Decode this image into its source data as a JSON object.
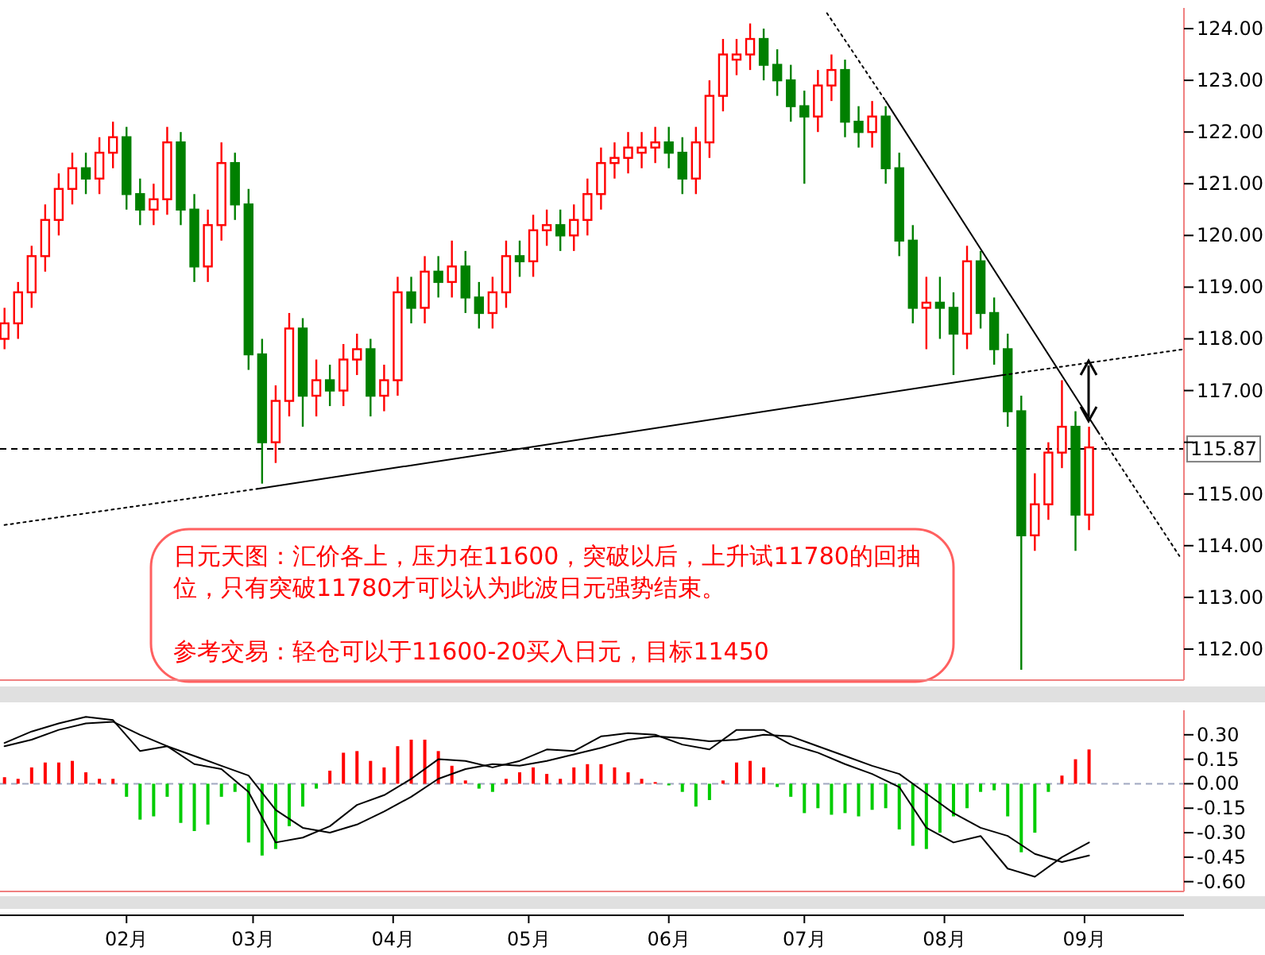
{
  "chart_data": [
    {
      "type": "candlestick",
      "tick_labels": "y",
      "xlim": [
        "--01-04",
        "--09-23"
      ],
      "ylim": [
        111.4,
        124.4
      ],
      "yticks": [
        {
          "value": 112,
          "label": "112.00"
        },
        {
          "value": 113,
          "label": "113.00"
        },
        {
          "value": 114,
          "label": "114.00"
        },
        {
          "value": 115,
          "label": "115.00"
        },
        {
          "value": 116,
          "label": null
        },
        {
          "value": 117,
          "label": "117.00"
        },
        {
          "value": 118,
          "label": "118.00"
        },
        {
          "value": 119,
          "label": "119.00"
        },
        {
          "value": 120,
          "label": "120.00"
        },
        {
          "value": 121,
          "label": "121.00"
        },
        {
          "value": 122,
          "label": "122.00"
        },
        {
          "value": 123,
          "label": "123.00"
        },
        {
          "value": 124,
          "label": "124.00"
        }
      ],
      "x": [
        "--01-05",
        "--01-08",
        "--01-11",
        "--01-14",
        "--01-17",
        "--01-20",
        "--01-23",
        "--01-26",
        "--01-29",
        "--02-01",
        "--02-04",
        "--02-07",
        "--02-10",
        "--02-13",
        "--02-16",
        "--02-19",
        "--02-22",
        "--02-25",
        "--02-28",
        "--03-03",
        "--03-06",
        "--03-09",
        "--03-12",
        "--03-15",
        "--03-18",
        "--03-21",
        "--03-24",
        "--03-27",
        "--03-30",
        "--04-02",
        "--04-05",
        "--04-08",
        "--04-11",
        "--04-14",
        "--04-17",
        "--04-20",
        "--04-23",
        "--04-26",
        "--04-29",
        "--05-02",
        "--05-05",
        "--05-08",
        "--05-11",
        "--05-14",
        "--05-17",
        "--05-20",
        "--05-23",
        "--05-26",
        "--05-29",
        "--06-01",
        "--06-04",
        "--06-07",
        "--06-10",
        "--06-13",
        "--06-16",
        "--06-19",
        "--06-22",
        "--06-25",
        "--06-28",
        "--07-01",
        "--07-04",
        "--07-07",
        "--07-10",
        "--07-13",
        "--07-16",
        "--07-19",
        "--07-22",
        "--07-25",
        "--07-28",
        "--07-31",
        "--08-03",
        "--08-06",
        "--08-09",
        "--08-12",
        "--08-15",
        "--08-18",
        "--08-21",
        "--08-24",
        "--08-27",
        "--08-30",
        "--09-02"
      ],
      "ohlc": [
        [
          118.0,
          118.6,
          117.8,
          118.3
        ],
        [
          118.3,
          119.1,
          118.0,
          118.9
        ],
        [
          118.9,
          119.8,
          118.6,
          119.6
        ],
        [
          119.6,
          120.6,
          119.3,
          120.3
        ],
        [
          120.3,
          121.2,
          120.0,
          120.9
        ],
        [
          120.9,
          121.6,
          120.6,
          121.3
        ],
        [
          121.3,
          121.6,
          120.8,
          121.1
        ],
        [
          121.1,
          121.9,
          120.8,
          121.6
        ],
        [
          121.6,
          122.2,
          121.3,
          121.9
        ],
        [
          121.9,
          122.1,
          120.5,
          120.8
        ],
        [
          120.8,
          121.1,
          120.2,
          120.5
        ],
        [
          120.5,
          121.0,
          120.2,
          120.7
        ],
        [
          120.7,
          122.1,
          120.4,
          121.8
        ],
        [
          121.8,
          122.0,
          120.2,
          120.5
        ],
        [
          120.5,
          120.8,
          119.1,
          119.4
        ],
        [
          119.4,
          120.5,
          119.1,
          120.2
        ],
        [
          120.2,
          121.8,
          119.9,
          121.4
        ],
        [
          121.4,
          121.6,
          120.3,
          120.6
        ],
        [
          120.6,
          120.9,
          117.4,
          117.7
        ],
        [
          117.7,
          118.0,
          115.2,
          116.0
        ],
        [
          116.0,
          117.1,
          115.6,
          116.8
        ],
        [
          116.8,
          118.5,
          116.5,
          118.2
        ],
        [
          118.2,
          118.4,
          116.3,
          116.9
        ],
        [
          116.9,
          117.6,
          116.5,
          117.2
        ],
        [
          117.2,
          117.5,
          116.7,
          117.0
        ],
        [
          117.0,
          117.9,
          116.7,
          117.6
        ],
        [
          117.6,
          118.1,
          117.3,
          117.8
        ],
        [
          117.8,
          118.0,
          116.5,
          116.9
        ],
        [
          116.9,
          117.5,
          116.6,
          117.2
        ],
        [
          117.2,
          119.2,
          116.9,
          118.9
        ],
        [
          118.9,
          119.2,
          118.3,
          118.6
        ],
        [
          118.6,
          119.6,
          118.3,
          119.3
        ],
        [
          119.3,
          119.6,
          118.8,
          119.1
        ],
        [
          119.1,
          119.9,
          118.8,
          119.4
        ],
        [
          119.4,
          119.7,
          118.5,
          118.8
        ],
        [
          118.8,
          119.1,
          118.2,
          118.5
        ],
        [
          118.5,
          119.2,
          118.2,
          118.9
        ],
        [
          118.9,
          119.9,
          118.6,
          119.6
        ],
        [
          119.6,
          119.9,
          119.2,
          119.5
        ],
        [
          119.5,
          120.4,
          119.2,
          120.1
        ],
        [
          120.1,
          120.5,
          119.8,
          120.2
        ],
        [
          120.2,
          120.5,
          119.7,
          120.0
        ],
        [
          120.0,
          120.6,
          119.7,
          120.3
        ],
        [
          120.3,
          121.1,
          120.0,
          120.8
        ],
        [
          120.8,
          121.7,
          120.5,
          121.4
        ],
        [
          121.4,
          121.8,
          121.1,
          121.5
        ],
        [
          121.5,
          122.0,
          121.2,
          121.7
        ],
        [
          121.6,
          122.0,
          121.3,
          121.7
        ],
        [
          121.7,
          122.1,
          121.4,
          121.8
        ],
        [
          121.8,
          122.1,
          121.3,
          121.6
        ],
        [
          121.6,
          121.9,
          120.8,
          121.1
        ],
        [
          121.1,
          122.1,
          120.8,
          121.8
        ],
        [
          121.8,
          123.0,
          121.5,
          122.7
        ],
        [
          122.7,
          123.8,
          122.4,
          123.5
        ],
        [
          123.4,
          123.8,
          123.1,
          123.5
        ],
        [
          123.5,
          124.1,
          123.2,
          123.8
        ],
        [
          123.8,
          124.0,
          123.0,
          123.3
        ],
        [
          123.3,
          123.6,
          122.7,
          123.0
        ],
        [
          123.0,
          123.3,
          122.2,
          122.5
        ],
        [
          122.5,
          122.8,
          121.0,
          122.3
        ],
        [
          122.3,
          123.2,
          122.0,
          122.9
        ],
        [
          122.9,
          123.5,
          122.6,
          123.2
        ],
        [
          123.2,
          123.4,
          121.9,
          122.2
        ],
        [
          122.2,
          122.5,
          121.7,
          122.0
        ],
        [
          122.0,
          122.6,
          121.7,
          122.3
        ],
        [
          122.3,
          122.5,
          121.0,
          121.3
        ],
        [
          121.3,
          121.6,
          119.6,
          119.9
        ],
        [
          119.9,
          120.2,
          118.3,
          118.6
        ],
        [
          118.6,
          119.2,
          117.8,
          118.7
        ],
        [
          118.7,
          119.2,
          118.0,
          118.6
        ],
        [
          118.6,
          118.9,
          117.3,
          118.1
        ],
        [
          118.1,
          119.8,
          117.8,
          119.5
        ],
        [
          119.5,
          119.7,
          118.2,
          118.5
        ],
        [
          118.5,
          118.8,
          117.5,
          117.8
        ],
        [
          117.8,
          118.1,
          116.3,
          116.6
        ],
        [
          116.6,
          116.9,
          111.6,
          114.2
        ],
        [
          114.2,
          115.4,
          113.9,
          114.8
        ],
        [
          114.8,
          116.0,
          114.5,
          115.8
        ],
        [
          115.8,
          117.2,
          115.5,
          116.3
        ],
        [
          116.3,
          116.6,
          113.9,
          114.6
        ],
        [
          114.6,
          116.3,
          114.3,
          115.9
        ]
      ],
      "colors": [
        "#ff0000",
        "#ff0000",
        "#ff0000",
        "#ff0000",
        "#ff0000",
        "#ff0000",
        "#008000",
        "#ff0000",
        "#ff0000",
        "#008000",
        "#008000",
        "#ff0000",
        "#ff0000",
        "#008000",
        "#008000",
        "#ff0000",
        "#ff0000",
        "#008000",
        "#008000",
        "#008000",
        "#ff0000",
        "#ff0000",
        "#008000",
        "#ff0000",
        "#008000",
        "#ff0000",
        "#ff0000",
        "#008000",
        "#ff0000",
        "#ff0000",
        "#008000",
        "#ff0000",
        "#008000",
        "#ff0000",
        "#008000",
        "#008000",
        "#ff0000",
        "#ff0000",
        "#008000",
        "#ff0000",
        "#ff0000",
        "#008000",
        "#ff0000",
        "#ff0000",
        "#ff0000",
        "#ff0000",
        "#ff0000",
        "#ff0000",
        "#ff0000",
        "#008000",
        "#008000",
        "#ff0000",
        "#ff0000",
        "#ff0000",
        "#ff0000",
        "#ff0000",
        "#008000",
        "#008000",
        "#008000",
        "#008000",
        "#ff0000",
        "#ff0000",
        "#008000",
        "#008000",
        "#ff0000",
        "#008000",
        "#008000",
        "#008000",
        "#ff0000",
        "#008000",
        "#008000",
        "#ff0000",
        "#008000",
        "#008000",
        "#008000",
        "#008000",
        "#ff0000",
        "#ff0000",
        "#ff0000",
        "#008000",
        "#ff0000"
      ],
      "series": [
        {
          "type": "line",
          "x": [
            "--01-05",
            "--03-02"
          ],
          "values": [
            114.4,
            115.1
          ],
          "color": "#000000",
          "line_style": "dotted"
        },
        {
          "type": "line",
          "x": [
            "--03-02",
            "--08-14"
          ],
          "values": [
            115.1,
            117.3
          ],
          "color": "#000000",
          "line_style": "solid"
        },
        {
          "type": "line",
          "x": [
            "--08-14",
            "--09-23"
          ],
          "values": [
            117.3,
            117.8
          ],
          "color": "#000000",
          "line_style": "dotted"
        },
        {
          "type": "line",
          "x": [
            "--07-06",
            "--07-19"
          ],
          "values": [
            124.3,
            122.6
          ],
          "color": "#000000",
          "line_style": "dotted"
        },
        {
          "type": "line",
          "x": [
            "--07-19",
            "--09-04"
          ],
          "values": [
            122.6,
            116.2
          ],
          "color": "#000000",
          "line_style": "solid"
        },
        {
          "type": "line",
          "x": [
            "--09-04",
            "--09-22"
          ],
          "values": [
            116.2,
            113.8
          ],
          "color": "#000000",
          "line_style": "dotted"
        }
      ],
      "ref_lines": [
        {
          "axis": "y",
          "value": 115.87,
          "label": "115.87",
          "color": "#000000",
          "line_style": "dashed"
        }
      ],
      "annotations": [
        "日元天图：汇价各上，压力在11600，突破以后，上升试11780的回抽位，只有突破11780才可以认为此波日元强势结束。",
        "参考交易：轻仓可以于11600-20买入日元，目标11450"
      ]
    },
    {
      "type": "bar",
      "xlim": [
        "--01-04",
        "--09-23"
      ],
      "ylim": [
        -0.66,
        0.45
      ],
      "yticks": [
        {
          "value": 0.3,
          "label": "0.30"
        },
        {
          "value": 0.15,
          "label": "0.15"
        },
        {
          "value": 0,
          "label": "0.00"
        },
        {
          "value": -0.15,
          "label": "-0.15"
        },
        {
          "value": -0.3,
          "label": "-0.30"
        },
        {
          "value": -0.45,
          "label": "-0.45"
        },
        {
          "value": -0.6,
          "label": "-0.60"
        }
      ],
      "xticks": [
        {
          "value": "--02-01",
          "label": "02月"
        },
        {
          "value": "--03-01",
          "label": "03月"
        },
        {
          "value": "--04-01",
          "label": "04月"
        },
        {
          "value": "--05-01",
          "label": "05月"
        },
        {
          "value": "--06-01",
          "label": "06月"
        },
        {
          "value": "--07-01",
          "label": "07月"
        },
        {
          "value": "--08-01",
          "label": "08月"
        },
        {
          "value": "--09-01",
          "label": "09月"
        }
      ],
      "x": [
        "--01-05",
        "--01-08",
        "--01-11",
        "--01-14",
        "--01-17",
        "--01-20",
        "--01-23",
        "--01-26",
        "--01-29",
        "--02-01",
        "--02-04",
        "--02-07",
        "--02-10",
        "--02-13",
        "--02-16",
        "--02-19",
        "--02-22",
        "--02-25",
        "--02-28",
        "--03-03",
        "--03-06",
        "--03-09",
        "--03-12",
        "--03-15",
        "--03-18",
        "--03-21",
        "--03-24",
        "--03-27",
        "--03-30",
        "--04-02",
        "--04-05",
        "--04-08",
        "--04-11",
        "--04-14",
        "--04-17",
        "--04-20",
        "--04-23",
        "--04-26",
        "--04-29",
        "--05-02",
        "--05-05",
        "--05-08",
        "--05-11",
        "--05-14",
        "--05-17",
        "--05-20",
        "--05-23",
        "--05-26",
        "--05-29",
        "--06-01",
        "--06-04",
        "--06-07",
        "--06-10",
        "--06-13",
        "--06-16",
        "--06-19",
        "--06-22",
        "--06-25",
        "--06-28",
        "--07-01",
        "--07-04",
        "--07-07",
        "--07-10",
        "--07-13",
        "--07-16",
        "--07-19",
        "--07-22",
        "--07-25",
        "--07-28",
        "--07-31",
        "--08-03",
        "--08-06",
        "--08-09",
        "--08-12",
        "--08-15",
        "--08-18",
        "--08-21",
        "--08-24",
        "--08-27",
        "--08-30",
        "--09-02"
      ],
      "series": [
        {
          "type": "bar",
          "values": [
            0.04,
            0.03,
            0.1,
            0.13,
            0.13,
            0.14,
            0.07,
            0.03,
            0.03,
            -0.08,
            -0.22,
            -0.2,
            -0.08,
            -0.24,
            -0.29,
            -0.25,
            -0.08,
            -0.05,
            -0.36,
            -0.44,
            -0.4,
            -0.26,
            -0.14,
            -0.03,
            0.08,
            0.19,
            0.2,
            0.14,
            0.1,
            0.23,
            0.27,
            0.27,
            0.2,
            0.11,
            0.02,
            -0.03,
            -0.05,
            0.03,
            0.07,
            0.1,
            0.06,
            0.03,
            0.1,
            0.12,
            0.12,
            0.1,
            0.07,
            0.03,
            0.01,
            -0.01,
            -0.05,
            -0.14,
            -0.1,
            0.02,
            0.13,
            0.14,
            0.1,
            -0.02,
            -0.08,
            -0.18,
            -0.15,
            -0.19,
            -0.18,
            -0.2,
            -0.16,
            -0.15,
            -0.28,
            -0.38,
            -0.4,
            -0.3,
            -0.2,
            -0.15,
            -0.05,
            -0.04,
            -0.2,
            -0.42,
            -0.3,
            -0.05,
            0.05,
            0.15,
            0.21
          ],
          "colors": [
            "#ff0000",
            "#ff0000",
            "#ff0000",
            "#ff0000",
            "#ff0000",
            "#ff0000",
            "#ff0000",
            "#ff0000",
            "#ff0000",
            "#00cc00",
            "#00cc00",
            "#00cc00",
            "#00cc00",
            "#00cc00",
            "#00cc00",
            "#00cc00",
            "#00cc00",
            "#00cc00",
            "#00cc00",
            "#00cc00",
            "#00cc00",
            "#00cc00",
            "#00cc00",
            "#00cc00",
            "#ff0000",
            "#ff0000",
            "#ff0000",
            "#ff0000",
            "#ff0000",
            "#ff0000",
            "#ff0000",
            "#ff0000",
            "#ff0000",
            "#ff0000",
            "#ff0000",
            "#00cc00",
            "#00cc00",
            "#ff0000",
            "#ff0000",
            "#ff0000",
            "#ff0000",
            "#ff0000",
            "#ff0000",
            "#ff0000",
            "#ff0000",
            "#ff0000",
            "#ff0000",
            "#ff0000",
            "#ff0000",
            "#00cc00",
            "#00cc00",
            "#00cc00",
            "#00cc00",
            "#ff0000",
            "#ff0000",
            "#ff0000",
            "#ff0000",
            "#00cc00",
            "#00cc00",
            "#00cc00",
            "#00cc00",
            "#00cc00",
            "#00cc00",
            "#00cc00",
            "#00cc00",
            "#00cc00",
            "#00cc00",
            "#00cc00",
            "#00cc00",
            "#00cc00",
            "#00cc00",
            "#00cc00",
            "#00cc00",
            "#00cc00",
            "#00cc00",
            "#00cc00",
            "#00cc00",
            "#00cc00",
            "#ff0000",
            "#ff0000",
            "#ff0000"
          ]
        },
        {
          "type": "line",
          "color": "#000000",
          "x": [
            "--01-05",
            "--01-11",
            "--01-17",
            "--01-23",
            "--01-29",
            "--02-04",
            "--02-10",
            "--02-16",
            "--02-22",
            "--02-28",
            "--03-06",
            "--03-12",
            "--03-18",
            "--03-24",
            "--03-30",
            "--04-05",
            "--04-11",
            "--04-17",
            "--04-23",
            "--04-29",
            "--05-05",
            "--05-11",
            "--05-17",
            "--05-23",
            "--05-29",
            "--06-04",
            "--06-10",
            "--06-16",
            "--06-22",
            "--06-28",
            "--07-04",
            "--07-10",
            "--07-16",
            "--07-22",
            "--07-28",
            "--08-03",
            "--08-09",
            "--08-15",
            "--08-21",
            "--08-27",
            "--09-02"
          ],
          "values": [
            0.25,
            0.32,
            0.37,
            0.41,
            0.39,
            0.2,
            0.23,
            0.12,
            0.09,
            -0.05,
            -0.36,
            -0.33,
            -0.26,
            -0.13,
            -0.07,
            0.03,
            0.15,
            0.14,
            0.1,
            0.14,
            0.21,
            0.2,
            0.29,
            0.31,
            0.3,
            0.24,
            0.21,
            0.33,
            0.33,
            0.24,
            0.19,
            0.12,
            0.06,
            -0.02,
            -0.27,
            -0.36,
            -0.32,
            -0.52,
            -0.57,
            -0.45,
            -0.36
          ]
        },
        {
          "type": "line",
          "color": "#000000",
          "x": [
            "--01-05",
            "--01-11",
            "--01-17",
            "--01-23",
            "--01-29",
            "--02-04",
            "--02-10",
            "--02-16",
            "--02-22",
            "--02-28",
            "--03-06",
            "--03-12",
            "--03-18",
            "--03-24",
            "--03-30",
            "--04-05",
            "--04-11",
            "--04-17",
            "--04-23",
            "--04-29",
            "--05-05",
            "--05-11",
            "--05-17",
            "--05-23",
            "--05-29",
            "--06-04",
            "--06-10",
            "--06-16",
            "--06-22",
            "--06-28",
            "--07-04",
            "--07-10",
            "--07-16",
            "--07-22",
            "--07-28",
            "--08-03",
            "--08-09",
            "--08-15",
            "--08-21",
            "--08-27",
            "--09-02"
          ],
          "values": [
            0.23,
            0.27,
            0.33,
            0.37,
            0.38,
            0.3,
            0.23,
            0.17,
            0.11,
            0.05,
            -0.16,
            -0.27,
            -0.3,
            -0.25,
            -0.17,
            -0.08,
            0.03,
            0.09,
            0.12,
            0.11,
            0.14,
            0.18,
            0.22,
            0.27,
            0.29,
            0.28,
            0.26,
            0.27,
            0.3,
            0.29,
            0.23,
            0.17,
            0.11,
            0.06,
            -0.06,
            -0.18,
            -0.27,
            -0.32,
            -0.43,
            -0.48,
            -0.44
          ]
        }
      ],
      "ref_lines": [
        {
          "axis": "y",
          "value": 0,
          "color": "#a0a8c0",
          "line_style": "dashed"
        }
      ]
    }
  ]
}
